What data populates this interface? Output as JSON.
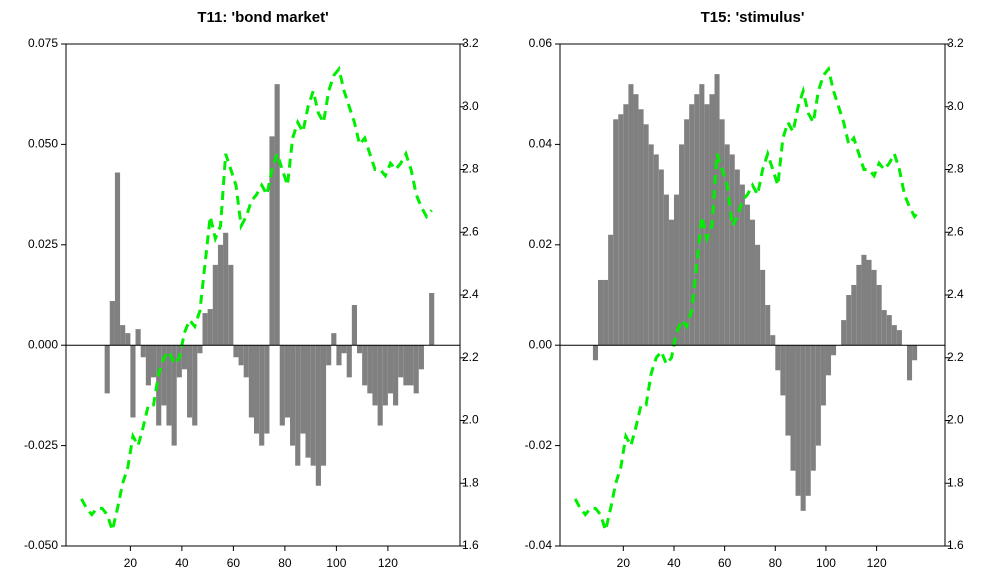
{
  "chart_data": [
    {
      "type": "bar",
      "title": "T11: 'bond market'",
      "x": [
        1,
        3,
        5,
        7,
        9,
        11,
        13,
        15,
        17,
        19,
        21,
        23,
        25,
        27,
        29,
        31,
        33,
        35,
        37,
        39,
        41,
        43,
        45,
        47,
        49,
        51,
        53,
        55,
        57,
        59,
        61,
        63,
        65,
        67,
        69,
        71,
        73,
        75,
        77,
        79,
        81,
        83,
        85,
        87,
        89,
        91,
        93,
        95,
        97,
        99,
        101,
        103,
        105,
        107,
        109,
        111,
        113,
        115,
        117,
        119,
        121,
        123,
        125,
        127,
        129,
        131,
        133,
        135,
        137
      ],
      "series": [
        {
          "color": "#808080",
          "values": [
            0,
            0,
            0,
            0,
            0,
            -0.012,
            0.011,
            0.043,
            0.005,
            0.003,
            -0.018,
            0.004,
            -0.003,
            -0.01,
            -0.008,
            -0.02,
            -0.015,
            -0.02,
            -0.025,
            -0.008,
            -0.006,
            -0.018,
            -0.02,
            -0.002,
            0.008,
            0.009,
            0.02,
            0.025,
            0.028,
            0.02,
            -0.003,
            -0.005,
            -0.008,
            -0.018,
            -0.022,
            -0.025,
            -0.022,
            0.052,
            0.065,
            -0.02,
            -0.018,
            -0.025,
            -0.03,
            -0.022,
            -0.028,
            -0.03,
            -0.035,
            -0.03,
            -0.005,
            0.003,
            -0.005,
            -0.002,
            -0.008,
            0.01,
            -0.002,
            -0.01,
            -0.012,
            -0.015,
            -0.02,
            -0.015,
            -0.012,
            -0.015,
            -0.008,
            -0.01,
            -0.01,
            -0.012,
            -0.006,
            0,
            0.013
          ]
        },
        {
          "type": "line",
          "axis": "y2",
          "color": "#00ee00",
          "values": [
            1.75,
            1.72,
            1.7,
            1.72,
            1.72,
            1.7,
            1.65,
            1.72,
            1.8,
            1.85,
            1.95,
            1.92,
            1.98,
            2.05,
            2.05,
            2.15,
            2.2,
            2.22,
            2.18,
            2.2,
            2.28,
            2.32,
            2.3,
            2.35,
            2.5,
            2.65,
            2.58,
            2.62,
            2.85,
            2.8,
            2.75,
            2.62,
            2.65,
            2.7,
            2.72,
            2.75,
            2.72,
            2.8,
            2.85,
            2.8,
            2.75,
            2.9,
            2.95,
            2.92,
            3.0,
            3.05,
            2.98,
            2.95,
            3.05,
            3.1,
            3.12,
            3.05,
            3.0,
            2.95,
            2.88,
            2.9,
            2.85,
            2.8,
            2.8,
            2.78,
            2.82,
            2.8,
            2.82,
            2.85,
            2.8,
            2.72,
            2.68,
            2.65,
            2.67
          ]
        }
      ],
      "xlim": [
        -5,
        148
      ],
      "xticks": [
        20,
        40,
        60,
        80,
        100,
        120
      ],
      "ylim": [
        -0.05,
        0.075
      ],
      "yticks": [
        {
          "value": -0.05,
          "label": "-0.050"
        },
        {
          "value": -0.025,
          "label": "-0.025"
        },
        {
          "value": 0,
          "label": "0.000"
        },
        {
          "value": 0.025,
          "label": "0.025"
        },
        {
          "value": 0.05,
          "label": "0.050"
        },
        {
          "value": 0.075,
          "label": "0.075"
        }
      ],
      "y2lim": [
        1.6,
        3.2
      ],
      "y2ticks": [
        1.6,
        1.8,
        {
          "value": 2.0,
          "label": "2.0"
        },
        2.2,
        2.4,
        2.6,
        2.8,
        {
          "value": 3.0,
          "label": "3.0"
        },
        3.2
      ]
    },
    {
      "type": "bar",
      "title": "T15: 'stimulus'",
      "x": [
        1,
        3,
        5,
        7,
        9,
        11,
        13,
        15,
        17,
        19,
        21,
        23,
        25,
        27,
        29,
        31,
        33,
        35,
        37,
        39,
        41,
        43,
        45,
        47,
        49,
        51,
        53,
        55,
        57,
        59,
        61,
        63,
        65,
        67,
        69,
        71,
        73,
        75,
        77,
        79,
        81,
        83,
        85,
        87,
        89,
        91,
        93,
        95,
        97,
        99,
        101,
        103,
        105,
        107,
        109,
        111,
        113,
        115,
        117,
        119,
        121,
        123,
        125,
        127,
        129,
        131,
        133,
        135,
        137
      ],
      "series": [
        {
          "color": "#808080",
          "values": [
            0,
            0,
            0,
            0,
            -0.003,
            0.013,
            0.013,
            0.022,
            0.045,
            0.046,
            0.048,
            0.052,
            0.05,
            0.047,
            0.044,
            0.04,
            0.038,
            0.035,
            0.03,
            0.025,
            0.03,
            0.04,
            0.045,
            0.048,
            0.05,
            0.052,
            0.048,
            0.05,
            0.054,
            0.045,
            0.04,
            0.038,
            0.035,
            0.032,
            0.028,
            0.025,
            0.02,
            0.015,
            0.008,
            0.002,
            -0.005,
            -0.01,
            -0.018,
            -0.025,
            -0.03,
            -0.033,
            -0.03,
            -0.025,
            -0.02,
            -0.012,
            -0.006,
            -0.002,
            0,
            0.005,
            0.01,
            0.012,
            0.016,
            0.018,
            0.017,
            0.015,
            0.012,
            0.007,
            0.006,
            0.004,
            0.003,
            0,
            -0.007,
            -0.003,
            0
          ]
        },
        {
          "type": "line",
          "axis": "y2",
          "color": "#00ee00",
          "values": [
            1.75,
            1.72,
            1.7,
            1.72,
            1.72,
            1.7,
            1.65,
            1.72,
            1.8,
            1.85,
            1.95,
            1.92,
            1.98,
            2.05,
            2.05,
            2.15,
            2.2,
            2.22,
            2.18,
            2.2,
            2.28,
            2.32,
            2.3,
            2.35,
            2.5,
            2.65,
            2.58,
            2.62,
            2.85,
            2.8,
            2.75,
            2.62,
            2.65,
            2.7,
            2.72,
            2.75,
            2.72,
            2.8,
            2.85,
            2.8,
            2.75,
            2.9,
            2.95,
            2.92,
            3.0,
            3.05,
            2.98,
            2.95,
            3.05,
            3.1,
            3.12,
            3.05,
            3.0,
            2.95,
            2.88,
            2.9,
            2.85,
            2.8,
            2.8,
            2.78,
            2.82,
            2.8,
            2.82,
            2.85,
            2.8,
            2.72,
            2.68,
            2.65,
            2.67
          ]
        }
      ],
      "xlim": [
        -5,
        147
      ],
      "xticks": [
        20,
        40,
        60,
        80,
        100,
        120
      ],
      "ylim": [
        -0.04,
        0.06
      ],
      "yticks": [
        -0.04,
        -0.02,
        {
          "value": 0,
          "label": "0.00"
        },
        0.02,
        0.04,
        0.06
      ],
      "y2lim": [
        1.6,
        3.2
      ],
      "y2ticks": [
        1.6,
        1.8,
        {
          "value": 2.0,
          "label": "2.0"
        },
        2.2,
        2.4,
        2.6,
        2.8,
        {
          "value": 3.0,
          "label": "3.0"
        },
        3.2
      ]
    }
  ]
}
